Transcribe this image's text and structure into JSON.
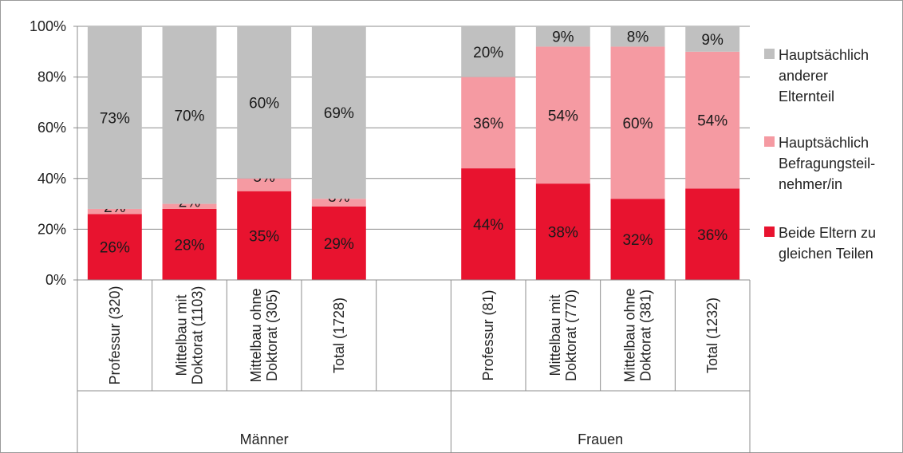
{
  "chart_data": {
    "type": "bar",
    "stacked": true,
    "ylim": [
      0,
      100
    ],
    "y_ticks": [
      "0%",
      "20%",
      "40%",
      "60%",
      "80%",
      "100%"
    ],
    "groups": [
      {
        "name": "Männer",
        "categories": [
          {
            "lines": [
              "Professur (320)"
            ]
          },
          {
            "lines": [
              "Mittelbau mit",
              "Doktorat (1103)"
            ]
          },
          {
            "lines": [
              "Mittelbau ohne",
              "Doktorat (305)"
            ]
          },
          {
            "lines": [
              "Total (1728)"
            ]
          },
          {
            "lines": []
          }
        ]
      },
      {
        "name": "Frauen",
        "categories": [
          {
            "lines": [
              "Professur (81)"
            ]
          },
          {
            "lines": [
              "Mittelbau mit",
              "Doktorat (770)"
            ]
          },
          {
            "lines": [
              "Mittelbau ohne",
              "Doktorat (381)"
            ]
          },
          {
            "lines": [
              "Total (1232)"
            ]
          }
        ]
      }
    ],
    "series": [
      {
        "name": "Beide Eltern zu gleichen Teilen",
        "legend_lines": [
          "Beide Eltern zu",
          "gleichen Teilen"
        ],
        "color": "#e8132f",
        "values": [
          26,
          28,
          35,
          29,
          null,
          44,
          38,
          32,
          36
        ],
        "labels": [
          "26%",
          "28%",
          "35%",
          "29%",
          "",
          "44%",
          "38%",
          "32%",
          "36%"
        ]
      },
      {
        "name": "Hauptsächlich Befragungsteilnehmer/in",
        "legend_lines": [
          "Hauptsächlich",
          "Befragungsteil-",
          "nehmer/in"
        ],
        "color": "#f59aa2",
        "values": [
          2,
          2,
          5,
          3,
          null,
          36,
          54,
          60,
          54
        ],
        "labels": [
          "2%",
          "2%",
          "5%",
          "3%",
          "",
          "36%",
          "54%",
          "60%",
          "54%"
        ]
      },
      {
        "name": "Hauptsächlich anderer Elternteil",
        "legend_lines": [
          "Hauptsächlich",
          "anderer",
          "Elternteil"
        ],
        "color": "#c0c0c0",
        "values": [
          73,
          70,
          60,
          69,
          null,
          20,
          9,
          8,
          9
        ],
        "labels": [
          "73%",
          "70%",
          "60%",
          "69%",
          "",
          "20%",
          "9%",
          "8%",
          "9%"
        ]
      }
    ],
    "legend_position": "right",
    "grid": true
  }
}
